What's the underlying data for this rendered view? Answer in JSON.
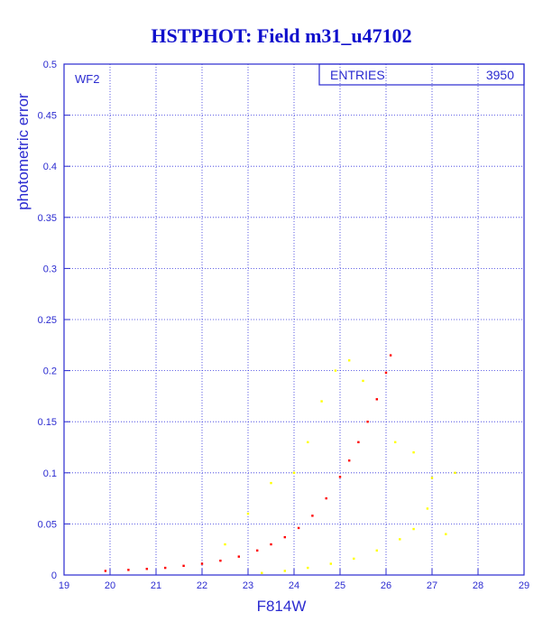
{
  "chart_data": {
    "type": "scatter",
    "title": "HSTPHOT: Field m31_u47102",
    "xlabel": "F814W",
    "ylabel": "photometric error",
    "xlim": [
      19,
      29
    ],
    "ylim": [
      0,
      0.5
    ],
    "x_ticks": [
      19,
      20,
      21,
      22,
      23,
      24,
      25,
      26,
      27,
      28,
      29
    ],
    "y_ticks": [
      0,
      0.05,
      0.1,
      0.15,
      0.2,
      0.25,
      0.3,
      0.35,
      0.4,
      0.45,
      0.5
    ],
    "grid": true,
    "annotation": "WF2",
    "stats_box": {
      "label": "ENTRIES",
      "value": "3950"
    },
    "series": [
      {
        "color": "#ff0000",
        "points": [
          [
            19.9,
            0.004
          ],
          [
            20.4,
            0.005
          ],
          [
            20.8,
            0.006
          ],
          [
            21.2,
            0.007
          ],
          [
            21.6,
            0.009
          ],
          [
            22.0,
            0.011
          ],
          [
            22.4,
            0.014
          ],
          [
            22.8,
            0.018
          ],
          [
            23.2,
            0.024
          ],
          [
            23.5,
            0.03
          ],
          [
            23.8,
            0.037
          ],
          [
            24.1,
            0.046
          ],
          [
            24.4,
            0.058
          ],
          [
            24.7,
            0.075
          ],
          [
            25.0,
            0.096
          ],
          [
            25.2,
            0.112
          ],
          [
            25.4,
            0.13
          ],
          [
            25.6,
            0.15
          ],
          [
            25.8,
            0.172
          ],
          [
            26.0,
            0.198
          ],
          [
            26.1,
            0.215
          ]
        ]
      },
      {
        "color": "#ffff00",
        "points": [
          [
            23.3,
            0.002
          ],
          [
            23.8,
            0.004
          ],
          [
            24.3,
            0.007
          ],
          [
            24.8,
            0.011
          ],
          [
            25.3,
            0.016
          ],
          [
            25.8,
            0.024
          ],
          [
            26.3,
            0.035
          ],
          [
            26.6,
            0.045
          ],
          [
            22.5,
            0.03
          ],
          [
            23.0,
            0.06
          ],
          [
            23.5,
            0.09
          ],
          [
            24.0,
            0.1
          ],
          [
            24.3,
            0.13
          ],
          [
            24.6,
            0.17
          ],
          [
            24.9,
            0.2
          ],
          [
            25.2,
            0.21
          ],
          [
            25.5,
            0.19
          ],
          [
            26.2,
            0.13
          ],
          [
            26.6,
            0.12
          ],
          [
            27.0,
            0.095
          ],
          [
            26.9,
            0.065
          ],
          [
            27.3,
            0.04
          ],
          [
            27.5,
            0.1
          ]
        ]
      }
    ]
  }
}
